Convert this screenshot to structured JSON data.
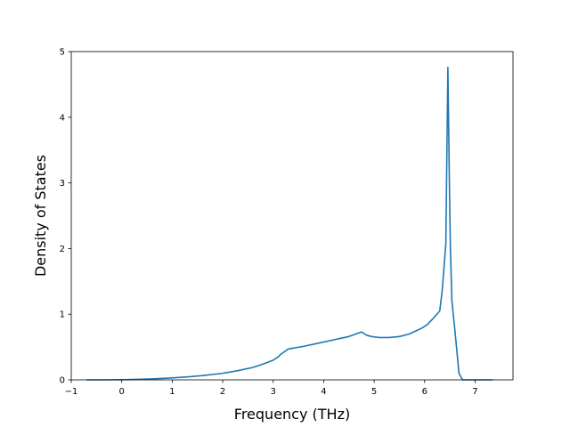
{
  "chart_data": {
    "type": "line",
    "title": "",
    "xlabel": "Frequency (THz)",
    "ylabel": "Density of States",
    "xlim": [
      -1.0,
      7.75
    ],
    "ylim": [
      0,
      5
    ],
    "xticks": [
      -1,
      0,
      1,
      2,
      3,
      4,
      5,
      6,
      7
    ],
    "yticks": [
      0,
      1,
      2,
      3,
      4,
      5
    ],
    "grid": false,
    "legend": "none",
    "colors": {
      "line": "#1f77b4",
      "axes": "#000000",
      "background": "#ffffff"
    },
    "series": [
      {
        "x": [
          -0.7,
          -0.4,
          0.0,
          0.3,
          0.6,
          1.0,
          1.3,
          1.6,
          2.0,
          2.3,
          2.6,
          2.8,
          3.0,
          3.1,
          3.15,
          3.3,
          3.6,
          3.9,
          4.2,
          4.5,
          4.75,
          4.85,
          4.95,
          5.1,
          5.3,
          5.5,
          5.7,
          5.95,
          6.05,
          6.15,
          6.3,
          6.35,
          6.42,
          6.46,
          6.49,
          6.51,
          6.54,
          6.6,
          6.68,
          6.75,
          7.0,
          7.35
        ],
        "y": [
          0.0,
          0.0,
          0.003,
          0.007,
          0.015,
          0.03,
          0.045,
          0.065,
          0.1,
          0.14,
          0.19,
          0.24,
          0.3,
          0.35,
          0.39,
          0.47,
          0.51,
          0.56,
          0.61,
          0.66,
          0.73,
          0.68,
          0.66,
          0.645,
          0.645,
          0.66,
          0.7,
          0.79,
          0.84,
          0.92,
          1.05,
          1.38,
          2.08,
          4.76,
          3.0,
          2.0,
          1.2,
          0.75,
          0.1,
          0.0,
          0.0,
          0.0
        ]
      }
    ]
  }
}
